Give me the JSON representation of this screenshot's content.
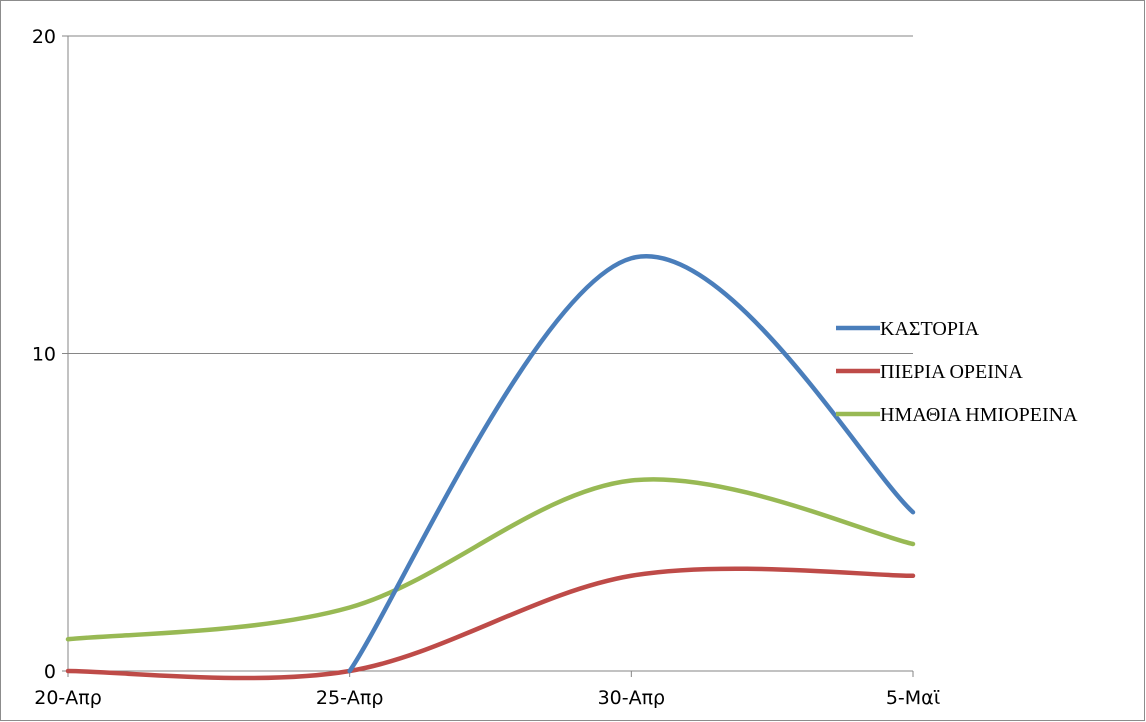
{
  "chart_data": {
    "type": "line",
    "title": "",
    "xlabel": "",
    "ylabel": "",
    "x_ticks": [
      "20-Απρ",
      "25-Απρ",
      "30-Απρ",
      "5-Μαϊ"
    ],
    "x_points": [
      0,
      5,
      10,
      15
    ],
    "ylim": [
      0,
      20
    ],
    "y_ticks": [
      "0",
      "10",
      "20"
    ],
    "y_tick_values": [
      0,
      10,
      20
    ],
    "grid": true,
    "smooth": true,
    "legend_position": "right",
    "series": [
      {
        "name": "ΚΑΣΤΟΡΙΑ",
        "color": "#4a7ebb",
        "values": [
          null,
          0,
          13,
          5
        ]
      },
      {
        "name": "ΠΙΕΡΙΑ ΟΡΕΙΝΑ",
        "color": "#be4b48",
        "values": [
          0,
          0,
          3,
          3
        ]
      },
      {
        "name": "ΗΜΑΘΙΑ ΗΜΙΟΡΕΙΝΑ",
        "color": "#98b954",
        "values": [
          1,
          2,
          6,
          4
        ]
      }
    ]
  }
}
